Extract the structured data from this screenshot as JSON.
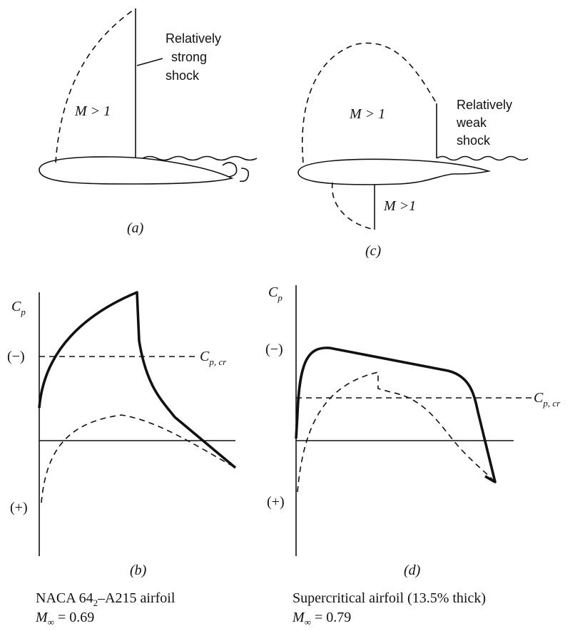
{
  "panel_a": {
    "label": "(a)",
    "shock_label": [
      "Relatively",
      "strong",
      "shock"
    ],
    "region_label": "M > 1"
  },
  "panel_c": {
    "label": "(c)",
    "shock_label": [
      "Relatively",
      "weak",
      "shock"
    ],
    "region_label_upper": "M > 1",
    "region_label_lower": "M >1"
  },
  "panel_b": {
    "label": "(b)",
    "y_axis": {
      "symbol": "C",
      "sub": "p"
    },
    "minus": "(−)",
    "plus": "(+)",
    "critical": {
      "symbol": "C",
      "sub": "p, cr"
    },
    "caption": {
      "name": "NACA 64",
      "name_sub": "2",
      "name_rest": "–A215 airfoil",
      "mach_symbol": "M",
      "mach_sub": "∞",
      "mach_value": " = 0.69"
    }
  },
  "panel_d": {
    "label": "(d)",
    "y_axis": {
      "symbol": "C",
      "sub": "p"
    },
    "minus": "(−)",
    "plus": "(+)",
    "critical": {
      "symbol": "C",
      "sub": "p, cr"
    },
    "caption": {
      "name": "Supercritical airfoil (13.5% thick)",
      "mach_symbol": "M",
      "mach_sub": "∞",
      "mach_value": " = 0.79"
    }
  }
}
